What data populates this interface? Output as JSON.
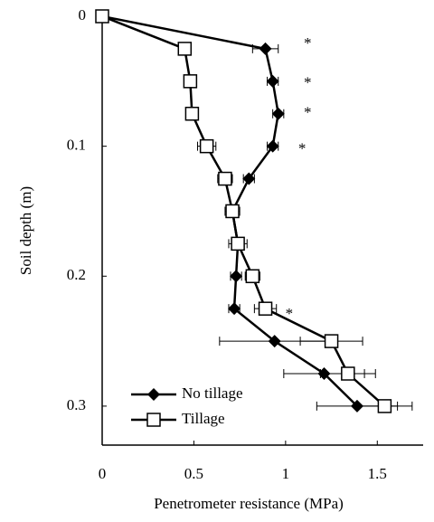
{
  "chart_data": {
    "type": "line",
    "x_label": "Penetrometer resistance (MPa)",
    "y_label": "Soil depth (m)",
    "y": [
      0,
      0.025,
      0.05,
      0.075,
      0.1,
      0.125,
      0.15,
      0.175,
      0.2,
      0.225,
      0.25,
      0.275,
      0.3
    ],
    "series": [
      {
        "name": "No tillage",
        "color": "#000000",
        "marker": "diamond",
        "values": [
          0,
          0.89,
          0.93,
          0.96,
          0.93,
          0.8,
          0.71,
          0.74,
          0.73,
          0.72,
          0.94,
          1.21,
          1.39
        ],
        "errors": [
          0,
          0.07,
          0.03,
          0.03,
          0.03,
          0.03,
          0.03,
          0.03,
          0.03,
          0.03,
          0.3,
          0.22,
          0.22
        ]
      },
      {
        "name": "Tillage",
        "color": "#000000",
        "marker": "square",
        "values": [
          0,
          0.45,
          0.48,
          0.49,
          0.57,
          0.67,
          0.71,
          0.74,
          0.82,
          0.89,
          1.25,
          1.34,
          1.54
        ],
        "errors": [
          0,
          0.02,
          0.02,
          0.02,
          0.05,
          0.04,
          0.04,
          0.05,
          0.04,
          0.06,
          0.17,
          0.15,
          0.15
        ]
      }
    ],
    "annotations": [
      {
        "text": "*",
        "x": 1.12,
        "y": 0.019
      },
      {
        "text": "*",
        "x": 1.12,
        "y": 0.049
      },
      {
        "text": "*",
        "x": 1.12,
        "y": 0.072
      },
      {
        "text": "*",
        "x": 1.09,
        "y": 0.1
      },
      {
        "text": "*",
        "x": 1.02,
        "y": 0.227
      }
    ],
    "xlim": [
      0,
      1.75
    ],
    "xticks": [
      0,
      0.5,
      1,
      1.5
    ],
    "ylim": [
      0,
      0.33
    ],
    "yticks": [
      0,
      0.1,
      0.2,
      0.3
    ],
    "y_inverted": true,
    "grid": false,
    "legend": "lower left"
  }
}
